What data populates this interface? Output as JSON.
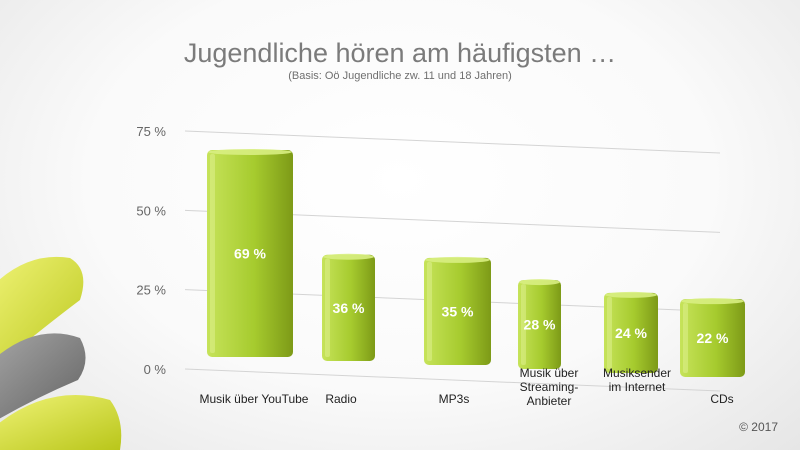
{
  "title": "Jugendliche hören am häufigsten …",
  "subtitle": "(Basis: Oö Jugendliche zw. 11 und 18 Jahren)",
  "copyright": "© 2017",
  "colors": {
    "bar_light": "#c6e35a",
    "bar_mid": "#a6cb2e",
    "bar_dark": "#7d9a17",
    "top": "#d8ee82",
    "grid": "#d4d4d4",
    "deco_yellow": "#dfe84a",
    "deco_gray": "#8e8e8e"
  },
  "chart_data": {
    "type": "bar",
    "title": "Jugendliche hören am häufigsten …",
    "subtitle": "(Basis: Oö Jugendliche zw. 11 und 18 Jahren)",
    "xlabel": "",
    "ylabel": "",
    "ylim": [
      0,
      75
    ],
    "yticks": [
      0,
      25,
      50,
      75
    ],
    "ytick_labels": [
      "0 %",
      "25 %",
      "50 %",
      "75 %"
    ],
    "grid": true,
    "categories": [
      [
        "Musik über YouTube"
      ],
      [
        "Radio"
      ],
      [
        "MP3s"
      ],
      [
        "Musik über",
        "Streaming-",
        "Anbieter"
      ],
      [
        "Musiksender",
        "im Internet"
      ],
      [
        "CDs"
      ]
    ],
    "values": [
      69,
      36,
      35,
      28,
      24,
      22
    ],
    "value_labels": [
      "69 %",
      "36 %",
      "35 %",
      "28 %",
      "24 %",
      "22 %"
    ]
  }
}
